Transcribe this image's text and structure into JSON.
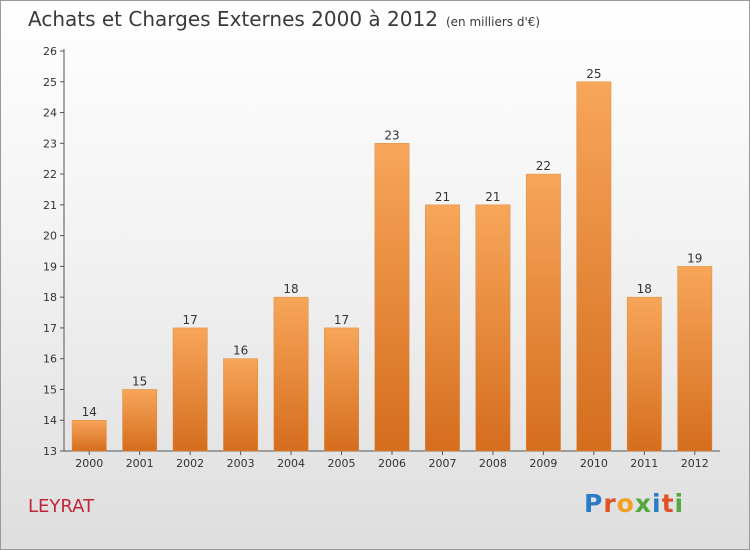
{
  "title": "Achats et Charges Externes 2000 à 2012",
  "subtitle": "(en milliers d'€)",
  "place": "LEYRAT",
  "logo": {
    "letters": [
      "P",
      "r",
      "o",
      "x",
      "i",
      "t",
      "i"
    ],
    "colors": [
      "#2a7cc7",
      "#e0532a",
      "#f1a11f",
      "#55a83c",
      "#2a7cc7",
      "#e0532a",
      "#55a83c"
    ]
  },
  "chart_data": {
    "type": "bar",
    "categories": [
      "2000",
      "2001",
      "2002",
      "2003",
      "2004",
      "2005",
      "2006",
      "2007",
      "2008",
      "2009",
      "2010",
      "2011",
      "2012"
    ],
    "values": [
      14,
      15,
      17,
      16,
      18,
      17,
      23,
      21,
      21,
      22,
      25,
      18,
      19
    ],
    "ylim": [
      13,
      26
    ],
    "yticks": [
      13,
      14,
      15,
      16,
      17,
      18,
      19,
      20,
      21,
      22,
      23,
      24,
      25,
      26
    ],
    "grid": false,
    "bar_color": "#f0923a"
  }
}
